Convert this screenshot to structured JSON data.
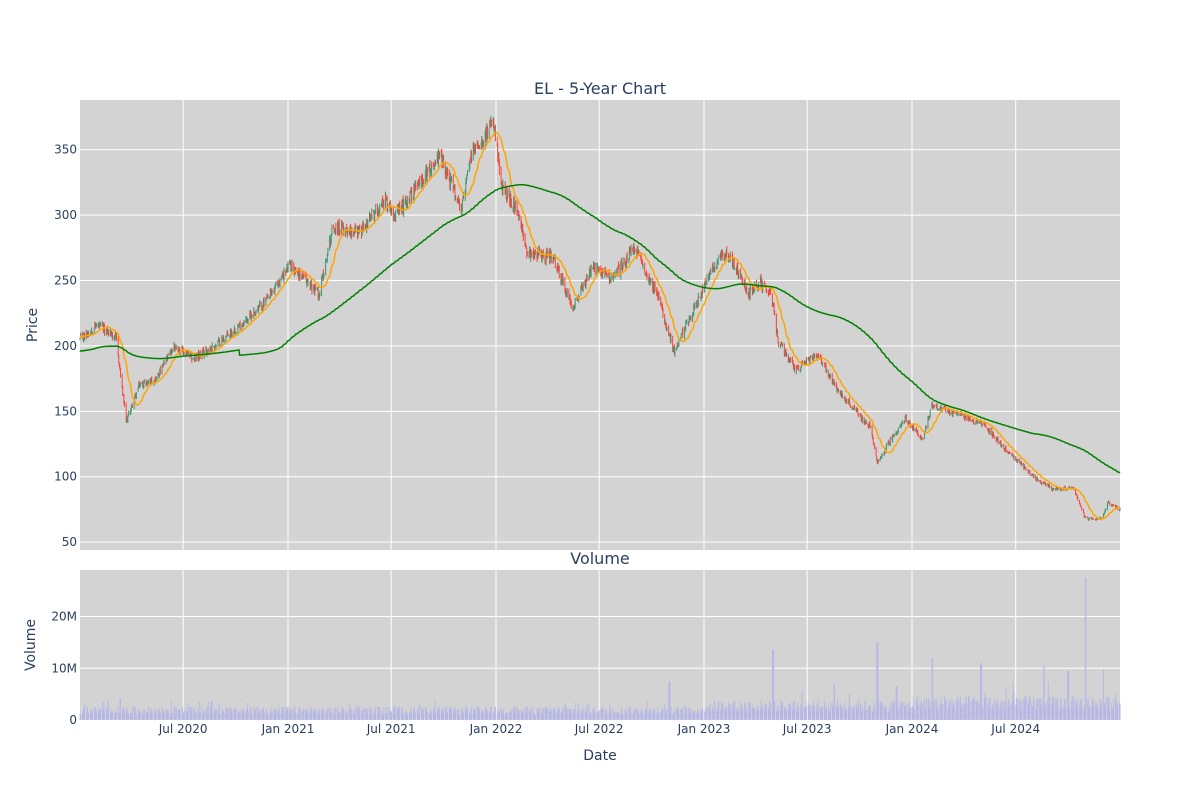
{
  "chart_data": [
    {
      "type": "candlestick",
      "title": "EL - 5-Year Chart",
      "xlabel": "",
      "ylabel": "Price",
      "xlim": [
        "2020-01-02",
        "2024-12-31"
      ],
      "ylim": [
        44,
        388
      ],
      "y_ticks": [
        50,
        100,
        150,
        200,
        250,
        300,
        350
      ],
      "grid": true,
      "colors": {
        "up": "#3d9970",
        "down": "#ff4136",
        "short_ma": "#ffa500",
        "long_ma": "#008000",
        "plot_bg": "#d3d3d3"
      },
      "close_anchors": [
        [
          "2020-01-02",
          205
        ],
        [
          "2020-02-01",
          216
        ],
        [
          "2020-03-05",
          207
        ],
        [
          "2020-03-23",
          142
        ],
        [
          "2020-04-15",
          170
        ],
        [
          "2020-05-15",
          175
        ],
        [
          "2020-06-15",
          200
        ],
        [
          "2020-07-20",
          190
        ],
        [
          "2020-08-25",
          200
        ],
        [
          "2020-10-15",
          218
        ],
        [
          "2020-11-25",
          235
        ],
        [
          "2021-01-05",
          262
        ],
        [
          "2021-02-25",
          240
        ],
        [
          "2021-03-20",
          290
        ],
        [
          "2021-05-10",
          288
        ],
        [
          "2021-06-20",
          312
        ],
        [
          "2021-07-10",
          300
        ],
        [
          "2021-08-20",
          325
        ],
        [
          "2021-09-25",
          345
        ],
        [
          "2021-11-01",
          305
        ],
        [
          "2021-11-20",
          348
        ],
        [
          "2021-12-28",
          370
        ],
        [
          "2022-01-10",
          322
        ],
        [
          "2022-02-05",
          305
        ],
        [
          "2022-02-25",
          272
        ],
        [
          "2022-04-10",
          268
        ],
        [
          "2022-05-15",
          230
        ],
        [
          "2022-06-20",
          260
        ],
        [
          "2022-07-25",
          252
        ],
        [
          "2022-09-01",
          275
        ],
        [
          "2022-10-15",
          235
        ],
        [
          "2022-11-10",
          195
        ],
        [
          "2022-12-10",
          225
        ],
        [
          "2023-01-20",
          262
        ],
        [
          "2023-02-10",
          272
        ],
        [
          "2023-03-20",
          240
        ],
        [
          "2023-04-10",
          248
        ],
        [
          "2023-04-30",
          238
        ],
        [
          "2023-05-10",
          205
        ],
        [
          "2023-06-10",
          182
        ],
        [
          "2023-07-20",
          193
        ],
        [
          "2023-08-25",
          165
        ],
        [
          "2023-10-20",
          138
        ],
        [
          "2023-11-01",
          110
        ],
        [
          "2023-11-20",
          125
        ],
        [
          "2023-12-20",
          145
        ],
        [
          "2024-01-20",
          128
        ],
        [
          "2024-02-05",
          155
        ],
        [
          "2024-03-20",
          148
        ],
        [
          "2024-05-05",
          140
        ],
        [
          "2024-06-20",
          118
        ],
        [
          "2024-08-01",
          100
        ],
        [
          "2024-09-05",
          90
        ],
        [
          "2024-10-10",
          92
        ],
        [
          "2024-10-31",
          68
        ],
        [
          "2024-11-30",
          68
        ],
        [
          "2024-12-10",
          80
        ],
        [
          "2024-12-31",
          75
        ]
      ],
      "series": [
        {
          "name": "",
          "key": "short_ma",
          "window_days": 20
        },
        {
          "name": "",
          "key": "long_ma",
          "window_days": 200
        }
      ]
    },
    {
      "type": "bar",
      "title": "Volume",
      "xlabel": "Date",
      "ylabel": "Volume",
      "xlim": [
        "2020-01-02",
        "2024-12-31"
      ],
      "ylim": [
        0,
        29000000
      ],
      "y_ticks": [
        {
          "value": 0,
          "label": "0"
        },
        {
          "value": 10000000,
          "label": "10M"
        },
        {
          "value": 20000000,
          "label": "20M"
        }
      ],
      "x_ticks": [
        {
          "date": "2020-07-01",
          "label": "Jul 2020"
        },
        {
          "date": "2021-01-01",
          "label": "Jan 2021"
        },
        {
          "date": "2021-07-01",
          "label": "Jul 2021"
        },
        {
          "date": "2022-01-01",
          "label": "Jan 2022"
        },
        {
          "date": "2022-07-01",
          "label": "Jul 2022"
        },
        {
          "date": "2023-01-01",
          "label": "Jan 2023"
        },
        {
          "date": "2023-07-01",
          "label": "Jul 2023"
        },
        {
          "date": "2024-01-01",
          "label": "Jan 2024"
        },
        {
          "date": "2024-07-01",
          "label": "Jul 2024"
        }
      ],
      "grid": true,
      "bar_color": "#b8b8e6",
      "volume_spikes": [
        [
          "2020-03-13",
          4200000
        ],
        [
          "2020-08-20",
          3600000
        ],
        [
          "2021-08-20",
          3000000
        ],
        [
          "2022-02-04",
          2600000
        ],
        [
          "2022-05-02",
          3200000
        ],
        [
          "2022-11-01",
          7500000
        ],
        [
          "2023-02-02",
          3300000
        ],
        [
          "2023-05-02",
          13600000
        ],
        [
          "2023-08-18",
          7000000
        ],
        [
          "2023-11-01",
          15000000
        ],
        [
          "2023-12-05",
          6500000
        ],
        [
          "2024-02-05",
          12000000
        ],
        [
          "2024-05-01",
          11000000
        ],
        [
          "2024-08-19",
          10500000
        ],
        [
          "2024-10-01",
          9500000
        ],
        [
          "2024-11-01",
          27500000
        ],
        [
          "2024-12-01",
          9800000
        ]
      ]
    }
  ]
}
